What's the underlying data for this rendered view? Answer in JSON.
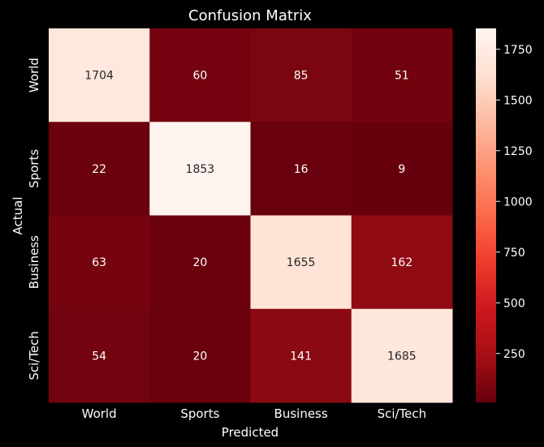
{
  "chart_data": {
    "type": "heatmap",
    "title": "Confusion Matrix",
    "xlabel": "Predicted",
    "ylabel": "Actual",
    "x_categories": [
      "World",
      "Sports",
      "Business",
      "Sci/Tech"
    ],
    "y_categories": [
      "World",
      "Sports",
      "Business",
      "Sci/Tech"
    ],
    "values": [
      [
        1704,
        60,
        85,
        51
      ],
      [
        22,
        1853,
        16,
        9
      ],
      [
        63,
        20,
        1655,
        162
      ],
      [
        54,
        20,
        141,
        1685
      ]
    ],
    "colorscale": "Reds_r",
    "colorbar": {
      "range": [
        9,
        1853
      ],
      "ticks": [
        250,
        500,
        750,
        1000,
        1250,
        1500,
        1750
      ]
    },
    "colors": {
      "background": "#000000",
      "text": "#ffffff"
    }
  }
}
